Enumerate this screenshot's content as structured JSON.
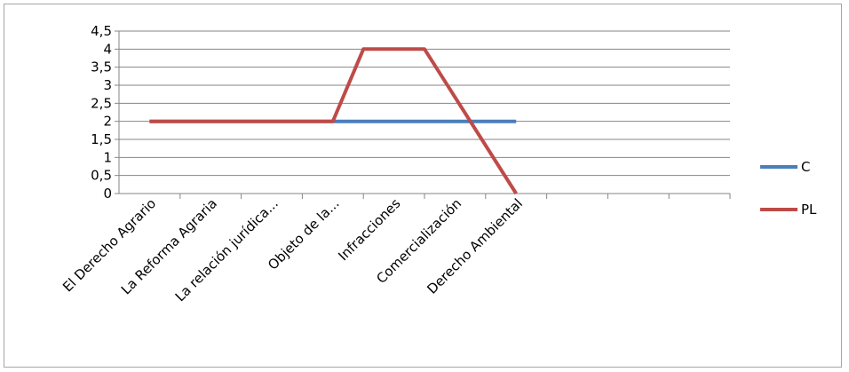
{
  "chart_data": {
    "type": "line",
    "categories": [
      "El Derecho Agrario",
      "La Reforma Agraria",
      "La relación jurídica...",
      "Objeto de la...",
      "Infracciones",
      "Comercialización",
      "Derecho Ambiental"
    ],
    "category_slots": 10,
    "y_ticks": [
      "0",
      "0,5",
      "1",
      "1,5",
      "2",
      "2,5",
      "3",
      "3,5",
      "4",
      "4,5"
    ],
    "ylim": [
      0,
      4.5
    ],
    "grid": true,
    "legend_position": "right",
    "series": [
      {
        "name": "C",
        "color": "#4a7ebb",
        "values": [
          2,
          2,
          2,
          2,
          2,
          2,
          2
        ]
      },
      {
        "name": "PL",
        "color": "#be4b48",
        "values": [
          2,
          2,
          2,
          2,
          4,
          4,
          0
        ],
        "x_offsets": [
          0,
          0,
          0,
          0,
          -0.5,
          -0.5,
          0
        ]
      }
    ],
    "title": "",
    "xlabel": "",
    "ylabel": ""
  }
}
